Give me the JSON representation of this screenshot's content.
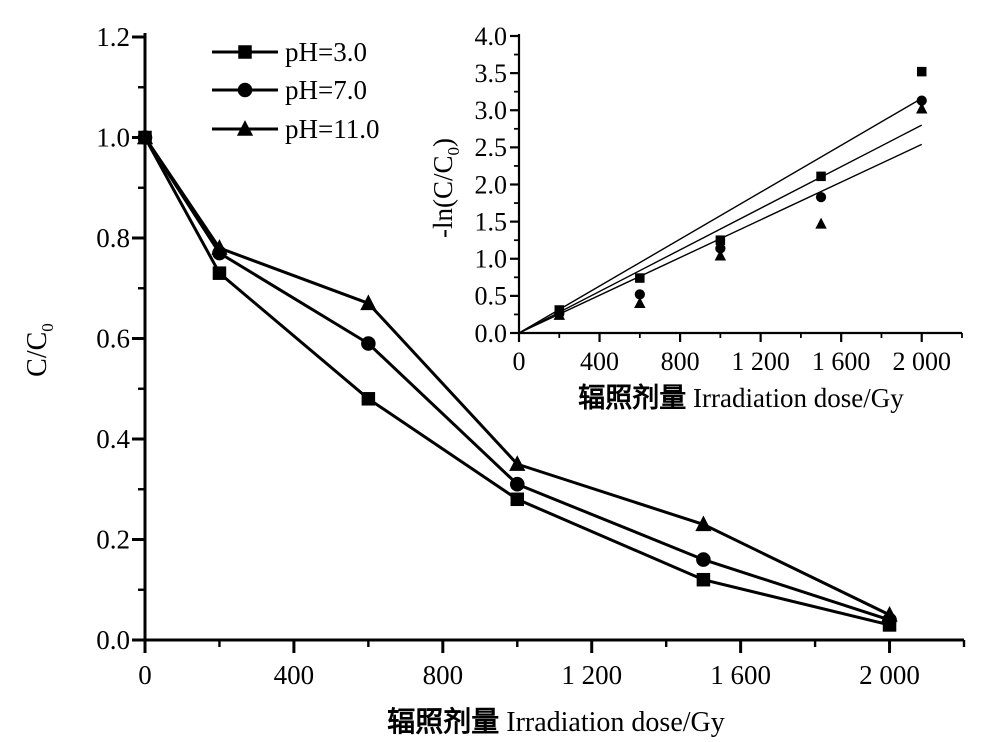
{
  "figure": {
    "background": "#ffffff",
    "ink": "#000000",
    "description": "Degradation curves C/C0 vs irradiation dose at three pH values, with inset first-order kinetics plot -ln(C/C0) vs dose"
  },
  "chart_data": [
    {
      "id": "main",
      "type": "line",
      "title": "",
      "xlabel_zh": "辐照剂量",
      "xlabel_en": "Irradiation dose/Gy",
      "ylabel": {
        "pre": "C/C",
        "sub": "0",
        "post": ""
      },
      "x": [
        0,
        200,
        600,
        1000,
        1500,
        2000
      ],
      "xlim": [
        0,
        2200
      ],
      "ylim": [
        0,
        1.2
      ],
      "xticks": [
        0,
        400,
        800,
        1200,
        1600,
        2000
      ],
      "xtick_labels": [
        "0",
        "400",
        "800",
        "1 200",
        "1 600",
        "2 000"
      ],
      "x_minor_ticks": [
        200,
        600,
        1000,
        1400,
        1800,
        2200
      ],
      "yticks": [
        0,
        0.2,
        0.4,
        0.6,
        0.8,
        1.0,
        1.2
      ],
      "ytick_labels": [
        "0.0",
        "0.2",
        "0.4",
        "0.6",
        "0.8",
        "1.0",
        "1.2"
      ],
      "y_minor_ticks": [
        0.1,
        0.3,
        0.5,
        0.7,
        0.9,
        1.1
      ],
      "grid": false,
      "legend_position": "top-left-inside",
      "series": [
        {
          "name": "pH=3.0",
          "marker": "square",
          "color": "#000000",
          "values": [
            1.0,
            0.73,
            0.48,
            0.28,
            0.12,
            0.03
          ]
        },
        {
          "name": "pH=7.0",
          "marker": "circle",
          "color": "#000000",
          "values": [
            1.0,
            0.77,
            0.59,
            0.31,
            0.16,
            0.04
          ]
        },
        {
          "name": "pH=11.0",
          "marker": "triangle",
          "color": "#000000",
          "values": [
            1.0,
            0.78,
            0.67,
            0.35,
            0.23,
            0.05
          ]
        }
      ]
    },
    {
      "id": "inset",
      "type": "scatter",
      "title": "",
      "xlabel_zh": "辐照剂量",
      "xlabel_en": "Irradiation dose/Gy",
      "ylabel": {
        "pre": "-ln(C/C",
        "sub": "0",
        "post": ")"
      },
      "x": [
        200,
        600,
        1000,
        1500,
        2000
      ],
      "xlim": [
        0,
        2200
      ],
      "ylim": [
        0,
        4.0
      ],
      "xticks": [
        0,
        400,
        800,
        1200,
        1600,
        2000
      ],
      "xtick_labels": [
        "0",
        "400",
        "800",
        "1 200",
        "1 600",
        "2 000"
      ],
      "x_minor_ticks": [
        200,
        600,
        1000,
        1400,
        1800,
        2200
      ],
      "yticks": [
        0,
        0.5,
        1.0,
        1.5,
        2.0,
        2.5,
        3.0,
        3.5,
        4.0
      ],
      "ytick_labels": [
        "0.0",
        "0.5",
        "1.0",
        "1.5",
        "2.0",
        "2.5",
        "3.0",
        "3.5",
        "4.0"
      ],
      "y_minor_ticks": [
        0.25,
        0.75,
        1.25,
        1.75,
        2.25,
        2.75,
        3.25,
        3.75
      ],
      "grid": false,
      "legend_position": "none",
      "series": [
        {
          "name": "pH=3.0",
          "marker": "square",
          "color": "#000000",
          "values": [
            0.31,
            0.74,
            1.25,
            2.11,
            3.52
          ]
        },
        {
          "name": "pH=7.0",
          "marker": "circle",
          "color": "#000000",
          "values": [
            0.26,
            0.52,
            1.14,
            1.83,
            3.13
          ]
        },
        {
          "name": "pH=11.0",
          "marker": "triangle",
          "color": "#000000",
          "values": [
            0.24,
            0.4,
            1.04,
            1.47,
            3.02
          ]
        }
      ],
      "fit_lines": [
        {
          "series": "pH=3.0",
          "slope_per_Gy": 0.00158,
          "x_range": [
            0,
            2000
          ]
        },
        {
          "series": "pH=7.0",
          "slope_per_Gy": 0.0014,
          "x_range": [
            0,
            2000
          ]
        },
        {
          "series": "pH=11.0",
          "slope_per_Gy": 0.00127,
          "x_range": [
            0,
            2000
          ]
        }
      ]
    }
  ]
}
